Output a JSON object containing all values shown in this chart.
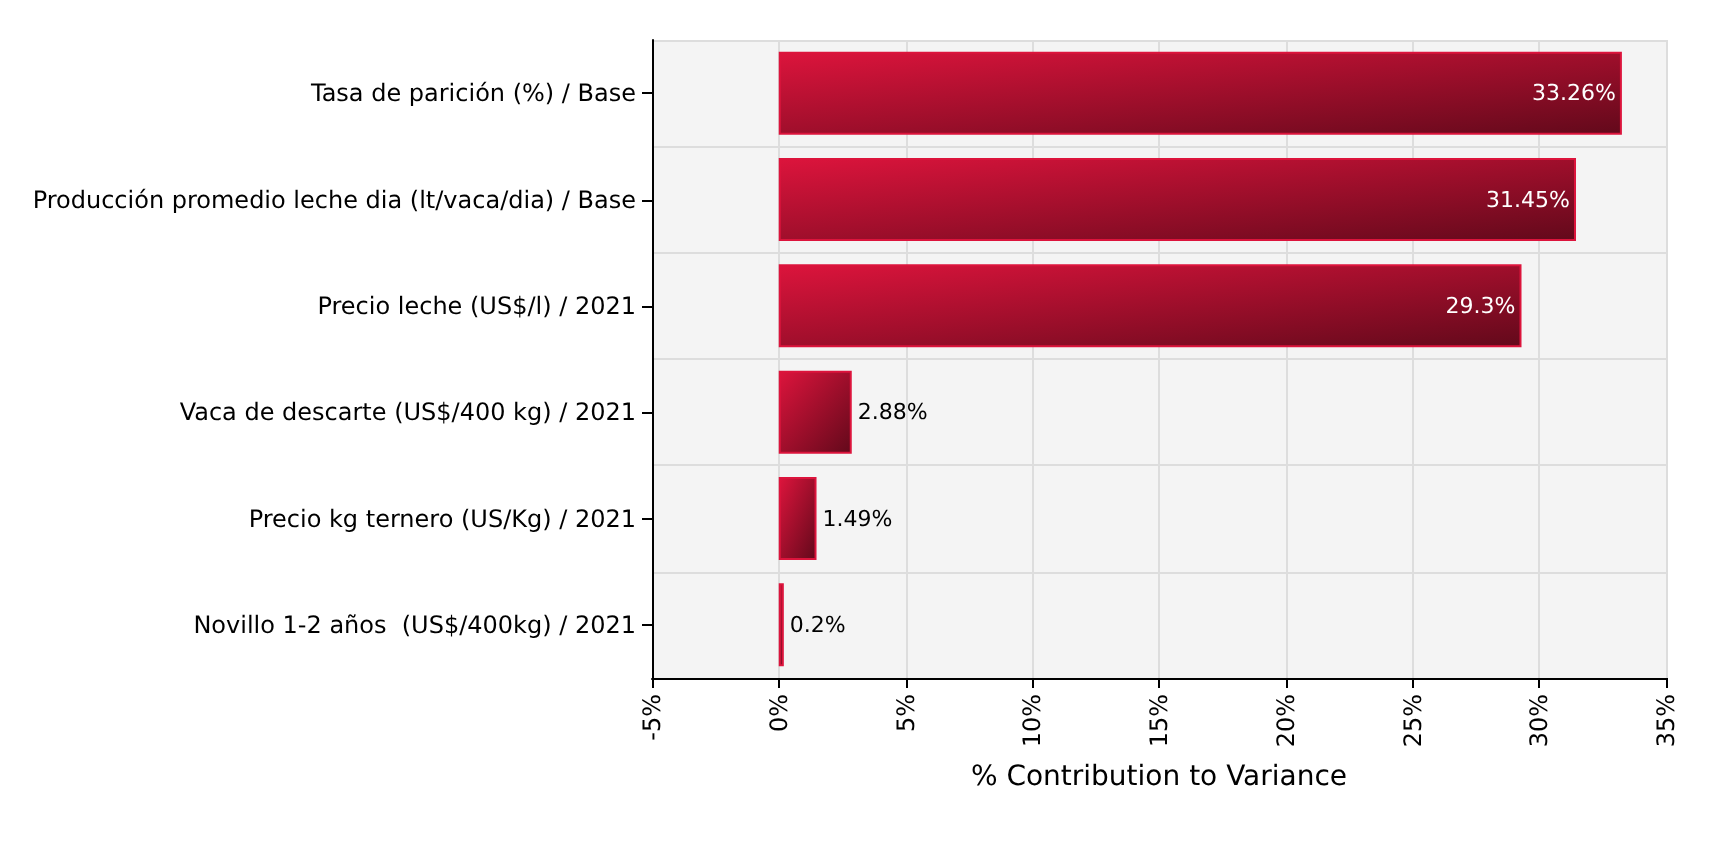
{
  "chart_data": {
    "type": "bar",
    "orientation": "horizontal",
    "xlabel": "% Contribution to Variance",
    "categories": [
      "Tasa de parición (%) / Base",
      "Producción promedio leche dia (lt/vaca/dia) / Base",
      "Precio leche (US$/l) / 2021",
      "Vaca de descarte (US$/400 kg) / 2021",
      "Precio kg ternero (US/Kg) / 2021",
      "Novillo 1-2 años  (US$/400kg) / 2021"
    ],
    "values": [
      33.26,
      31.45,
      29.3,
      2.88,
      1.49,
      0.2
    ],
    "value_labels": [
      "33.26%",
      "31.45%",
      "29.3%",
      "2.88%",
      "1.49%",
      "0.2%"
    ],
    "color": "#dc143c",
    "xlim": [
      -5,
      35
    ],
    "xticks": [
      {
        "value": -5,
        "label": "-5%"
      },
      {
        "value": 0,
        "label": "0%"
      },
      {
        "value": 5,
        "label": "5%"
      },
      {
        "value": 10,
        "label": "10%"
      },
      {
        "value": 15,
        "label": "15%"
      },
      {
        "value": 20,
        "label": "20%"
      },
      {
        "value": 25,
        "label": "25%"
      },
      {
        "value": 30,
        "label": "30%"
      },
      {
        "value": 35,
        "label": "35%"
      }
    ],
    "grid": true
  }
}
